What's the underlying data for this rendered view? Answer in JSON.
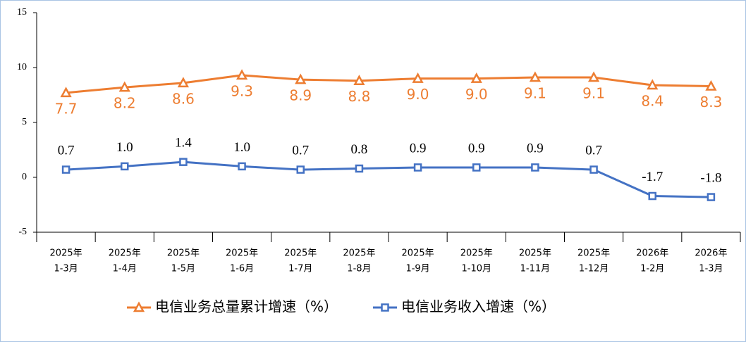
{
  "chart_data": {
    "type": "line",
    "categories": [
      [
        "2025年",
        "1-3月"
      ],
      [
        "2025年",
        "1-4月"
      ],
      [
        "2025年",
        "1-5月"
      ],
      [
        "2025年",
        "1-6月"
      ],
      [
        "2025年",
        "1-7月"
      ],
      [
        "2025年",
        "1-8月"
      ],
      [
        "2025年",
        "1-9月"
      ],
      [
        "2025年",
        "1-10月"
      ],
      [
        "2025年",
        "1-11月"
      ],
      [
        "2025年",
        "1-12月"
      ],
      [
        "2026年",
        "1-2月"
      ],
      [
        "2026年",
        "1-3月"
      ]
    ],
    "series": [
      {
        "name": "电信业务总量累计增速（%）",
        "color": "#ed7d31",
        "marker": "triangle",
        "label_position": "below",
        "values": [
          7.7,
          8.2,
          8.6,
          9.3,
          8.9,
          8.8,
          9.0,
          9.0,
          9.1,
          9.1,
          8.4,
          8.3
        ],
        "value_labels": [
          "7.7",
          "8.2",
          "8.6",
          "9.3",
          "8.9",
          "8.8",
          "9.0",
          "9.0",
          "9.1",
          "9.1",
          "8.4",
          "8.3"
        ]
      },
      {
        "name": "电信业务收入增速（%）",
        "color": "#4472c4",
        "marker": "square",
        "label_position": "above",
        "values": [
          0.7,
          1.0,
          1.4,
          1.0,
          0.7,
          0.8,
          0.9,
          0.9,
          0.9,
          0.7,
          -1.7,
          -1.8
        ],
        "value_labels": [
          "0.7",
          "1.0",
          "1.4",
          "1.0",
          "0.7",
          "0.8",
          "0.9",
          "0.9",
          "0.9",
          "0.7",
          "-1.7",
          "-1.8"
        ]
      }
    ],
    "ylim": [
      -5,
      15
    ],
    "yticks": [
      -5,
      0,
      5,
      10,
      15
    ],
    "grid": false
  }
}
